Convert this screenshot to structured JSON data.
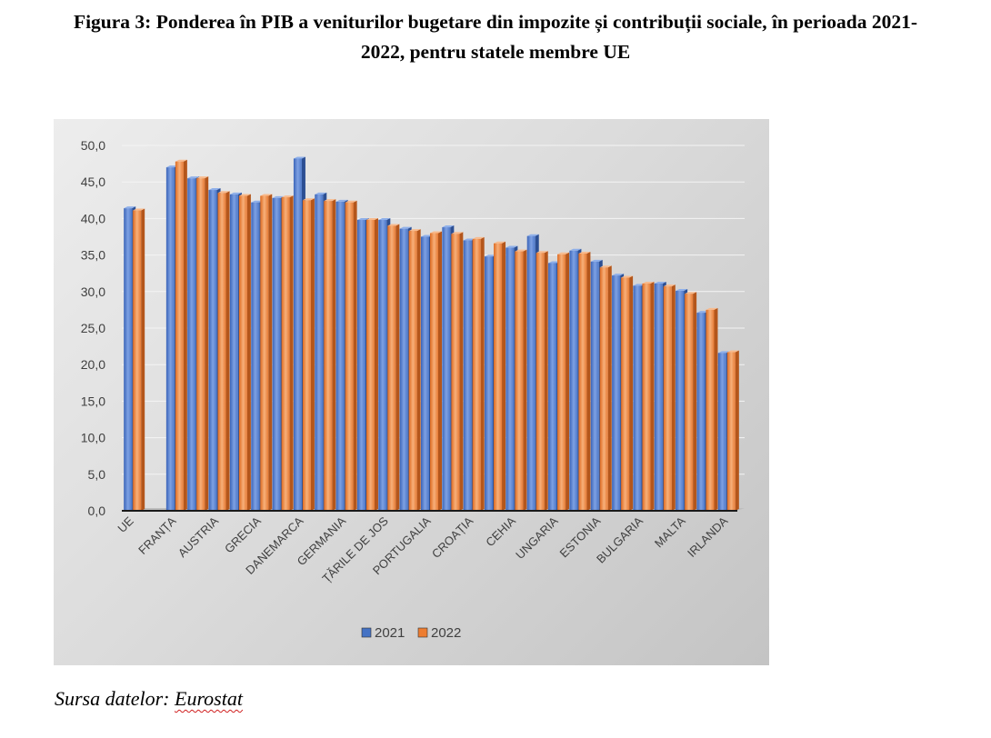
{
  "title": "Figura 3: Ponderea în PIB a veniturilor bugetare din impozite și contribuții sociale, în perioada 2021-2022, pentru statele membre UE",
  "source": {
    "prefix": "Sursa datelor: ",
    "name": "Eurostat"
  },
  "colors": {
    "series_2021": "#4472c4",
    "series_2022": "#ed7d31"
  },
  "chart_data": {
    "type": "bar",
    "title": "",
    "xlabel": "",
    "ylabel": "",
    "ylim": [
      0,
      50
    ],
    "y_ticks": [
      "0,0",
      "5,0",
      "10,0",
      "15,0",
      "20,0",
      "25,0",
      "30,0",
      "35,0",
      "40,0",
      "45,0",
      "50,0"
    ],
    "grid": true,
    "legend_position": "bottom",
    "categories": [
      "UE",
      "",
      "FRANȚA",
      "",
      "AUSTRIA",
      "",
      "GRECIA",
      "",
      "DANEMARCA",
      "",
      "GERMANIA",
      "",
      "ȚĂRILE DE JOS",
      "",
      "PORTUGALIA",
      "",
      "CROAȚIA",
      "",
      "CEHIA",
      "",
      "UNGARIA",
      "",
      "ESTONIA",
      "",
      "BULGARIA",
      "",
      "MALTA",
      "",
      "IRLANDA"
    ],
    "series": [
      {
        "name": "2021",
        "values": [
          41.4,
          null,
          47.0,
          45.5,
          43.9,
          43.3,
          42.2,
          42.8,
          48.2,
          43.3,
          42.3,
          39.8,
          39.8,
          38.6,
          37.5,
          38.8,
          37.0,
          34.8,
          36.0,
          37.6,
          33.9,
          35.6,
          34.1,
          32.2,
          30.8,
          31.1,
          30.1,
          27.1,
          21.6
        ]
      },
      {
        "name": "2022",
        "values": [
          41.1,
          null,
          47.8,
          45.5,
          43.5,
          43.1,
          43.1,
          42.9,
          42.5,
          42.4,
          42.2,
          39.8,
          39.0,
          38.3,
          38.0,
          37.9,
          37.2,
          36.6,
          35.5,
          35.3,
          35.1,
          35.2,
          33.3,
          31.9,
          31.1,
          30.7,
          29.7,
          27.5,
          21.7
        ]
      }
    ]
  }
}
